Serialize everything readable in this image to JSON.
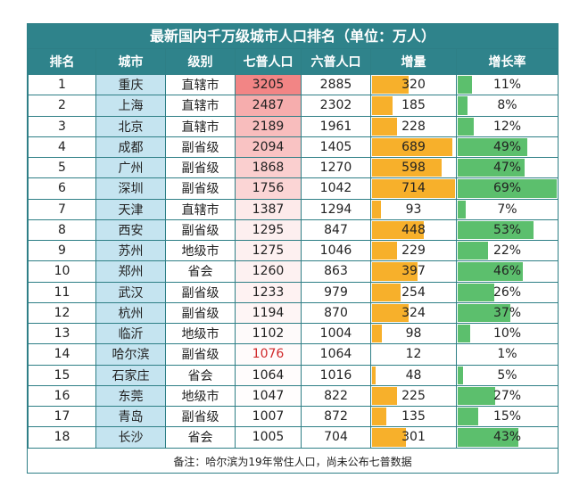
{
  "title": "最新国内千万级城市人口排名（单位：万人）",
  "headers": [
    "排名",
    "城市",
    "级别",
    "七普人口",
    "六普人口",
    "增量",
    "增长率"
  ],
  "note": "备注：哈尔滨为19年常住人口，尚未公布七普数据",
  "colors": {
    "header_bg": "#2f838b",
    "city_bg": "#c5e4f0",
    "increase_bar": "#f7b02b",
    "rate_bar": "#5cbf6d",
    "pop7_heat_high": "#f28585",
    "highlight_text": "#d0292b"
  },
  "chart_data": {
    "type": "table",
    "columns": [
      "排名",
      "城市",
      "级别",
      "七普人口",
      "六普人口",
      "增量",
      "增长率"
    ],
    "rows": [
      {
        "rank": "1",
        "city": "重庆",
        "level": "直辖市",
        "pop7": "3205",
        "pop6": "2885",
        "inc": "320",
        "rate": "11%"
      },
      {
        "rank": "2",
        "city": "上海",
        "level": "直辖市",
        "pop7": "2487",
        "pop6": "2302",
        "inc": "185",
        "rate": "8%"
      },
      {
        "rank": "3",
        "city": "北京",
        "level": "直辖市",
        "pop7": "2189",
        "pop6": "1961",
        "inc": "228",
        "rate": "12%"
      },
      {
        "rank": "4",
        "city": "成都",
        "level": "副省级",
        "pop7": "2094",
        "pop6": "1405",
        "inc": "689",
        "rate": "49%"
      },
      {
        "rank": "5",
        "city": "广州",
        "level": "副省级",
        "pop7": "1868",
        "pop6": "1270",
        "inc": "598",
        "rate": "47%"
      },
      {
        "rank": "6",
        "city": "深圳",
        "level": "副省级",
        "pop7": "1756",
        "pop6": "1042",
        "inc": "714",
        "rate": "69%"
      },
      {
        "rank": "7",
        "city": "天津",
        "level": "直辖市",
        "pop7": "1387",
        "pop6": "1294",
        "inc": "93",
        "rate": "7%"
      },
      {
        "rank": "8",
        "city": "西安",
        "level": "副省级",
        "pop7": "1295",
        "pop6": "847",
        "inc": "448",
        "rate": "53%"
      },
      {
        "rank": "9",
        "city": "苏州",
        "level": "地级市",
        "pop7": "1275",
        "pop6": "1046",
        "inc": "229",
        "rate": "22%"
      },
      {
        "rank": "10",
        "city": "郑州",
        "level": "省会",
        "pop7": "1260",
        "pop6": "863",
        "inc": "397",
        "rate": "46%"
      },
      {
        "rank": "11",
        "city": "武汉",
        "level": "副省级",
        "pop7": "1233",
        "pop6": "979",
        "inc": "254",
        "rate": "26%"
      },
      {
        "rank": "12",
        "city": "杭州",
        "level": "副省级",
        "pop7": "1194",
        "pop6": "870",
        "inc": "324",
        "rate": "37%"
      },
      {
        "rank": "13",
        "city": "临沂",
        "level": "地级市",
        "pop7": "1102",
        "pop6": "1004",
        "inc": "98",
        "rate": "10%"
      },
      {
        "rank": "14",
        "city": "哈尔滨",
        "level": "副省级",
        "pop7": "1076",
        "pop6": "1064",
        "inc": "12",
        "rate": "1%",
        "pop7_highlight": true
      },
      {
        "rank": "15",
        "city": "石家庄",
        "level": "省会",
        "pop7": "1064",
        "pop6": "1016",
        "inc": "48",
        "rate": "5%"
      },
      {
        "rank": "16",
        "city": "东莞",
        "level": "地级市",
        "pop7": "1047",
        "pop6": "822",
        "inc": "225",
        "rate": "27%"
      },
      {
        "rank": "17",
        "city": "青岛",
        "level": "副省级",
        "pop7": "1007",
        "pop6": "872",
        "inc": "135",
        "rate": "15%"
      },
      {
        "rank": "18",
        "city": "长沙",
        "level": "省会",
        "pop7": "1005",
        "pop6": "704",
        "inc": "301",
        "rate": "43%"
      }
    ]
  }
}
